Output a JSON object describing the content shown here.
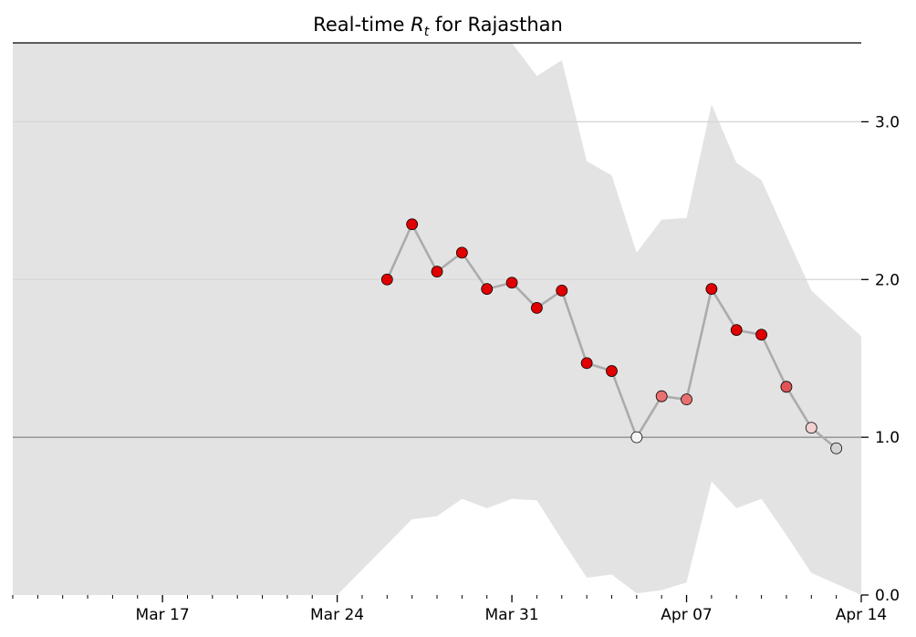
{
  "chart_data": {
    "type": "line",
    "title": "Real-time Rt for Rajasthan",
    "title_parts": {
      "prefix": "Real-time ",
      "symbol": "R",
      "subscript": "t",
      "suffix": " for Rajasthan"
    },
    "xlabel": "",
    "ylabel": "",
    "ylim": [
      0,
      3.5
    ],
    "y_ticks": [
      {
        "value": 0.0,
        "label": "0.0"
      },
      {
        "value": 1.0,
        "label": "1.0"
      },
      {
        "value": 2.0,
        "label": "2.0"
      },
      {
        "value": 3.0,
        "label": "3.0"
      }
    ],
    "x_range": [
      "Mar 11",
      "Apr 14"
    ],
    "x_ticks": [
      {
        "date": "Mar 17",
        "label": "Mar 17"
      },
      {
        "date": "Mar 24",
        "label": "Mar 24"
      },
      {
        "date": "Mar 31",
        "label": "Mar 31"
      },
      {
        "date": "Apr 07",
        "label": "Apr 07"
      },
      {
        "date": "Apr 14",
        "label": "Apr 14"
      }
    ],
    "reference_line": 1.0,
    "grid": "horizontal",
    "y_axis_side": "right",
    "band_color": "#e3e3e3",
    "line_color": "#ababab",
    "series": [
      {
        "points": [
          {
            "date": "Mar 26",
            "value": 2.0,
            "color": "#e00000"
          },
          {
            "date": "Mar 27",
            "value": 2.35,
            "color": "#e00000"
          },
          {
            "date": "Mar 28",
            "value": 2.05,
            "color": "#e00000"
          },
          {
            "date": "Mar 29",
            "value": 2.17,
            "color": "#e00000"
          },
          {
            "date": "Mar 30",
            "value": 1.94,
            "color": "#e00000"
          },
          {
            "date": "Mar 31",
            "value": 1.98,
            "color": "#e00000"
          },
          {
            "date": "Apr 01",
            "value": 1.82,
            "color": "#e00000"
          },
          {
            "date": "Apr 02",
            "value": 1.93,
            "color": "#e00000"
          },
          {
            "date": "Apr 03",
            "value": 1.47,
            "color": "#e00000"
          },
          {
            "date": "Apr 04",
            "value": 1.42,
            "color": "#e00000"
          },
          {
            "date": "Apr 05",
            "value": 1.0,
            "color": "#f5f5f5"
          },
          {
            "date": "Apr 06",
            "value": 1.26,
            "color": "#e87070"
          },
          {
            "date": "Apr 07",
            "value": 1.24,
            "color": "#e87070"
          },
          {
            "date": "Apr 08",
            "value": 1.94,
            "color": "#e00000"
          },
          {
            "date": "Apr 09",
            "value": 1.68,
            "color": "#e00000"
          },
          {
            "date": "Apr 10",
            "value": 1.65,
            "color": "#e00000"
          },
          {
            "date": "Apr 11",
            "value": 1.32,
            "color": "#e05555"
          },
          {
            "date": "Apr 12",
            "value": 1.06,
            "color": "#f0d0d0"
          },
          {
            "date": "Apr 13",
            "value": 0.93,
            "color": "#d3d3d3"
          }
        ]
      }
    ],
    "band": [
      {
        "date": "Mar 11",
        "low": 0.0,
        "high": 3.5
      },
      {
        "date": "Mar 24",
        "low": 0.0,
        "high": 3.5
      },
      {
        "date": "Mar 27",
        "low": 0.48,
        "high": 3.5
      },
      {
        "date": "Mar 28",
        "low": 0.5,
        "high": 3.5
      },
      {
        "date": "Mar 29",
        "low": 0.61,
        "high": 3.5
      },
      {
        "date": "Mar 30",
        "low": 0.55,
        "high": 3.5
      },
      {
        "date": "Mar 31",
        "low": 0.61,
        "high": 3.5
      },
      {
        "date": "Apr 01",
        "low": 0.6,
        "high": 3.29
      },
      {
        "date": "Apr 02",
        "low": 0.35,
        "high": 3.39
      },
      {
        "date": "Apr 03",
        "low": 0.11,
        "high": 2.75
      },
      {
        "date": "Apr 04",
        "low": 0.13,
        "high": 2.66
      },
      {
        "date": "Apr 05",
        "low": 0.01,
        "high": 2.17
      },
      {
        "date": "Apr 06",
        "low": 0.03,
        "high": 2.38
      },
      {
        "date": "Apr 07",
        "low": 0.08,
        "high": 2.39
      },
      {
        "date": "Apr 08",
        "low": 0.72,
        "high": 3.11
      },
      {
        "date": "Apr 09",
        "low": 0.55,
        "high": 2.74
      },
      {
        "date": "Apr 10",
        "low": 0.61,
        "high": 2.63
      },
      {
        "date": "Apr 11",
        "low": 0.38,
        "high": 2.28
      },
      {
        "date": "Apr 12",
        "low": 0.14,
        "high": 1.93
      },
      {
        "date": "Apr 14",
        "low": 0.0,
        "high": 1.64
      }
    ]
  }
}
